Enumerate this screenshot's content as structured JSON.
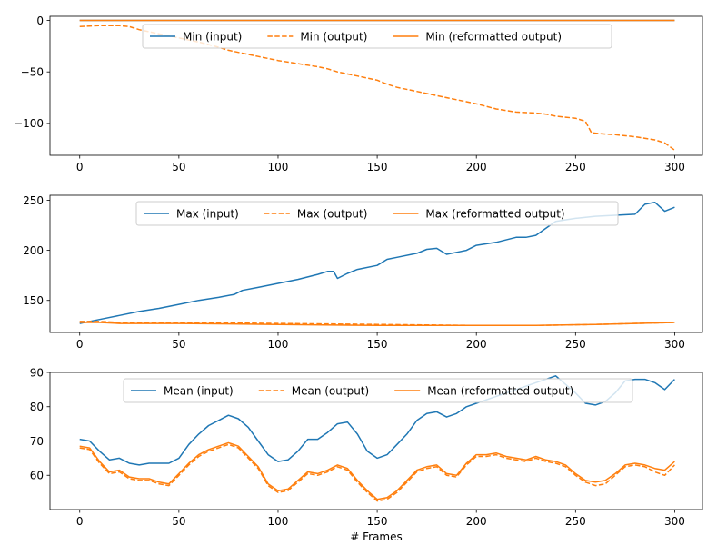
{
  "xlabel": "# Frames",
  "chart_data": [
    {
      "type": "line",
      "xlim": [
        -15,
        314
      ],
      "ylim": [
        -131,
        4
      ],
      "xticks": [
        0,
        50,
        100,
        150,
        200,
        250,
        300
      ],
      "yticks": [
        -100,
        -50,
        0
      ],
      "legend": {
        "placement": "top-center",
        "entries": [
          "Min (input)",
          "Min (output)",
          "Min (reformatted output)"
        ]
      },
      "series": [
        {
          "name": "Min (input)",
          "color": "#1f77b4",
          "style": "solid",
          "x": [
            0,
            300
          ],
          "y": [
            0,
            0
          ]
        },
        {
          "name": "Min (output)",
          "color": "#ff7f0e",
          "style": "dashed",
          "x": [
            0,
            10,
            20,
            25,
            30,
            40,
            50,
            60,
            70,
            75,
            80,
            90,
            100,
            110,
            120,
            125,
            130,
            140,
            150,
            155,
            160,
            170,
            180,
            190,
            200,
            210,
            220,
            230,
            235,
            240,
            245,
            250,
            255,
            258,
            262,
            270,
            280,
            290,
            295,
            300
          ],
          "y": [
            -6,
            -5,
            -5,
            -6,
            -9,
            -13,
            -17,
            -21,
            -26,
            -29,
            -31,
            -35,
            -39,
            -42,
            -45,
            -47,
            -50,
            -54,
            -58,
            -62,
            -65,
            -69,
            -73,
            -77,
            -81,
            -86,
            -89,
            -90,
            -91,
            -93,
            -94,
            -95,
            -98,
            -109,
            -110,
            -111,
            -113,
            -116,
            -119,
            -126
          ]
        },
        {
          "name": "Min (reformatted output)",
          "color": "#ff7f0e",
          "style": "solid",
          "x": [
            0,
            300
          ],
          "y": [
            0,
            0
          ]
        }
      ]
    },
    {
      "type": "line",
      "xlim": [
        -15,
        314
      ],
      "ylim": [
        118,
        255
      ],
      "xticks": [
        0,
        50,
        100,
        150,
        200,
        250,
        300
      ],
      "yticks": [
        150,
        200,
        250
      ],
      "legend": {
        "placement": "top-center",
        "entries": [
          "Max (input)",
          "Max (output)",
          "Max (reformatted output)"
        ]
      },
      "series": [
        {
          "name": "Max (input)",
          "color": "#1f77b4",
          "style": "solid",
          "x": [
            0,
            10,
            20,
            30,
            40,
            50,
            60,
            70,
            78,
            82,
            90,
            100,
            110,
            120,
            125,
            128,
            130,
            135,
            140,
            150,
            155,
            160,
            170,
            175,
            180,
            185,
            190,
            195,
            200,
            210,
            220,
            225,
            230,
            235,
            240,
            250,
            260,
            270,
            280,
            285,
            290,
            295,
            300
          ],
          "y": [
            127,
            131,
            135,
            139,
            142,
            146,
            150,
            153,
            156,
            160,
            163,
            167,
            171,
            176,
            179,
            179,
            172,
            177,
            181,
            185,
            191,
            193,
            197,
            201,
            202,
            196,
            198,
            200,
            205,
            208,
            213,
            213,
            215,
            222,
            229,
            232,
            234,
            235,
            236,
            246,
            248,
            239,
            243
          ]
        },
        {
          "name": "Max (output)",
          "color": "#ff7f0e",
          "style": "dashed",
          "x": [
            0,
            10,
            20,
            50,
            100,
            150,
            200,
            230,
            260,
            300
          ],
          "y": [
            129,
            129,
            128,
            128,
            127,
            126,
            125,
            125,
            126,
            128
          ]
        },
        {
          "name": "Max (reformatted output)",
          "color": "#ff7f0e",
          "style": "solid",
          "x": [
            0,
            10,
            20,
            50,
            100,
            150,
            200,
            230,
            260,
            300
          ],
          "y": [
            128,
            128,
            127,
            127,
            126,
            125,
            125,
            125,
            126,
            128
          ]
        }
      ]
    },
    {
      "type": "line",
      "xlim": [
        -15,
        314
      ],
      "ylim": [
        50,
        90
      ],
      "xticks": [
        0,
        50,
        100,
        150,
        200,
        250,
        300
      ],
      "yticks": [
        60,
        70,
        80,
        90
      ],
      "legend": {
        "placement": "top-center",
        "entries": [
          "Mean (input)",
          "Mean (output)",
          "Mean (reformatted output)"
        ]
      },
      "series": [
        {
          "name": "Mean (input)",
          "color": "#1f77b4",
          "style": "solid",
          "x": [
            0,
            5,
            10,
            15,
            20,
            25,
            30,
            35,
            40,
            45,
            50,
            55,
            60,
            65,
            70,
            75,
            80,
            85,
            90,
            95,
            100,
            105,
            110,
            115,
            120,
            125,
            130,
            135,
            140,
            145,
            150,
            155,
            160,
            165,
            170,
            175,
            180,
            185,
            190,
            195,
            200,
            210,
            220,
            230,
            240,
            250,
            255,
            260,
            265,
            270,
            275,
            280,
            285,
            290,
            295,
            300
          ],
          "y": [
            70.5,
            70,
            67,
            64.5,
            65,
            63.5,
            63,
            63.5,
            63.5,
            63.5,
            65,
            69,
            72,
            74.5,
            76,
            77.5,
            76.5,
            74,
            70,
            66,
            64,
            64.5,
            67,
            70.5,
            70.5,
            72.5,
            75,
            75.5,
            72,
            67,
            65,
            66,
            69,
            72,
            76,
            78,
            78.5,
            77,
            78,
            80,
            81,
            83,
            85,
            87,
            89,
            84,
            81,
            80.5,
            81.5,
            84,
            87.5,
            88,
            88,
            87,
            85,
            88
          ]
        },
        {
          "name": "Mean (output)",
          "color": "#ff7f0e",
          "style": "dashed",
          "x": [
            0,
            5,
            10,
            15,
            20,
            25,
            30,
            35,
            40,
            45,
            50,
            55,
            60,
            65,
            70,
            75,
            80,
            85,
            90,
            95,
            100,
            105,
            110,
            115,
            120,
            125,
            130,
            135,
            140,
            145,
            150,
            155,
            160,
            165,
            170,
            175,
            180,
            185,
            190,
            195,
            200,
            205,
            210,
            215,
            220,
            225,
            230,
            235,
            240,
            245,
            250,
            255,
            260,
            265,
            270,
            275,
            280,
            285,
            290,
            295,
            300
          ],
          "y": [
            68,
            67.5,
            63.5,
            60.5,
            61,
            59,
            58.5,
            58.5,
            57.5,
            57,
            60,
            63,
            65.5,
            67,
            68,
            69,
            68,
            65,
            62,
            57,
            55,
            55.5,
            58,
            60.5,
            60,
            61,
            62.5,
            61.5,
            58,
            55,
            52.5,
            53,
            55,
            58,
            61,
            62,
            62.5,
            60,
            59.5,
            63,
            65.5,
            65.5,
            66,
            65,
            64.5,
            64,
            65,
            64,
            63.5,
            62.5,
            60,
            58,
            57,
            57.5,
            60,
            62.5,
            63,
            62.5,
            61,
            60,
            63
          ]
        },
        {
          "name": "Mean (reformatted output)",
          "color": "#ff7f0e",
          "style": "solid",
          "x": [
            0,
            5,
            10,
            15,
            20,
            25,
            30,
            35,
            40,
            45,
            50,
            55,
            60,
            65,
            70,
            75,
            80,
            85,
            90,
            95,
            100,
            105,
            110,
            115,
            120,
            125,
            130,
            135,
            140,
            145,
            150,
            155,
            160,
            165,
            170,
            175,
            180,
            185,
            190,
            195,
            200,
            205,
            210,
            215,
            220,
            225,
            230,
            235,
            240,
            245,
            250,
            255,
            260,
            265,
            270,
            275,
            280,
            285,
            290,
            295,
            300
          ],
          "y": [
            68.5,
            68,
            64,
            61,
            61.5,
            59.5,
            59,
            59,
            58,
            57.5,
            60.5,
            63.5,
            66,
            67.5,
            68.5,
            69.5,
            68.5,
            65.5,
            62.5,
            57.5,
            55.5,
            56,
            58.5,
            61,
            60.5,
            61.5,
            63,
            62,
            58.5,
            55.5,
            53,
            53.5,
            55.5,
            58.5,
            61.5,
            62.5,
            63,
            60.5,
            60,
            63.5,
            66,
            66,
            66.5,
            65.5,
            65,
            64.5,
            65.5,
            64.5,
            64,
            63,
            60.5,
            58.5,
            58,
            58.5,
            60.5,
            63,
            63.5,
            63,
            62,
            61.5,
            64
          ]
        }
      ]
    }
  ]
}
